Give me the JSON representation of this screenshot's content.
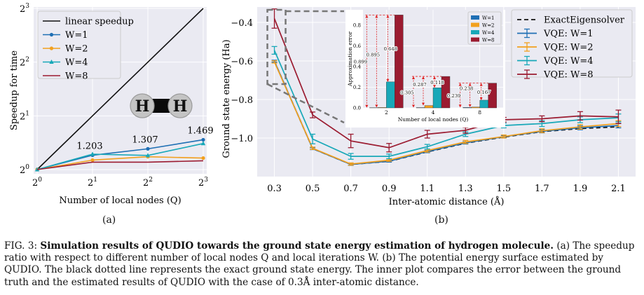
{
  "chart_data": [
    {
      "type": "line",
      "xlabel": "Number of local nodes (Q)",
      "ylabel": "Speedup for time",
      "x_scale": "log2",
      "y_scale": "log2",
      "xticks": [
        "2^0",
        "2^1",
        "2^2",
        "2^3"
      ],
      "yticks": [
        "2^0",
        "2^1",
        "2^2",
        "2^3"
      ],
      "grid": true,
      "legend_position": "top-left",
      "x": [
        1,
        2,
        4,
        8
      ],
      "series": [
        {
          "name": "linear speedup",
          "color": "#111111",
          "values": [
            1,
            2,
            4,
            8
          ]
        },
        {
          "name": "W=1",
          "color": "#1f6fb4",
          "marker": "circle",
          "values": [
            1,
            1.203,
            1.307,
            1.469
          ]
        },
        {
          "name": "W=2",
          "color": "#f2a01e",
          "marker": "circle",
          "values": [
            1,
            1.13,
            1.18,
            1.16
          ]
        },
        {
          "name": "W=4",
          "color": "#18a8b8",
          "marker": "triangle",
          "values": [
            1,
            1.22,
            1.2,
            1.4
          ]
        },
        {
          "name": "W=8",
          "color": "#9b1b30",
          "marker": "none",
          "values": [
            1,
            1.1,
            1.1,
            1.12
          ]
        }
      ],
      "annotations": [
        {
          "x": 2,
          "y": 1.203,
          "text": "1.203"
        },
        {
          "x": 4,
          "y": 1.307,
          "text": "1.307"
        },
        {
          "x": 8,
          "y": 1.469,
          "text": "1.469"
        }
      ],
      "molecule_labels": [
        "H",
        "H"
      ]
    },
    {
      "type": "line",
      "xlabel": "Inter-atomic distance (Å)",
      "ylabel": "Ground state energy (Ha)",
      "ylim": [
        -1.2,
        -0.32
      ],
      "xticks": [
        "0.3",
        "0.5",
        "0.7",
        "0.9",
        "1.1",
        "1.3",
        "1.5",
        "1.7",
        "1.9",
        "2.1"
      ],
      "yticks": [
        "-0.4",
        "-0.6",
        "-0.8",
        "-1.0"
      ],
      "grid": true,
      "legend_position": "top-right",
      "x": [
        0.3,
        0.5,
        0.7,
        0.9,
        1.1,
        1.3,
        1.5,
        1.7,
        1.9,
        2.1
      ],
      "series": [
        {
          "name": "ExactEigensolver",
          "color": "#111111",
          "style": "dashed",
          "values": [
            -0.601,
            -1.055,
            -1.137,
            -1.121,
            -1.072,
            -1.027,
            -0.995,
            -0.967,
            -0.951,
            -0.942
          ]
        },
        {
          "name": "VQE: W=1",
          "color": "#1f6fb4",
          "values": [
            -0.601,
            -1.055,
            -1.137,
            -1.12,
            -1.07,
            -1.025,
            -0.993,
            -0.965,
            -0.947,
            -0.935
          ],
          "errors": [
            0.005,
            0.005,
            0.005,
            0.005,
            0.006,
            0.006,
            0.006,
            0.008,
            0.01,
            0.012
          ]
        },
        {
          "name": "VQE: W=2",
          "color": "#f2a01e",
          "values": [
            -0.605,
            -1.053,
            -1.135,
            -1.115,
            -1.065,
            -1.02,
            -0.992,
            -0.962,
            -0.942,
            -0.925
          ],
          "errors": [
            0.006,
            0.006,
            0.006,
            0.006,
            0.008,
            0.008,
            0.008,
            0.01,
            0.012,
            0.015
          ]
        },
        {
          "name": "VQE: W=4",
          "color": "#18a8b8",
          "values": [
            -0.545,
            -1.005,
            -1.095,
            -1.095,
            -1.045,
            -0.98,
            -0.935,
            -0.925,
            -0.905,
            -0.895
          ],
          "errors": [
            0.02,
            0.025,
            0.015,
            0.012,
            0.012,
            0.012,
            0.012,
            0.015,
            0.015,
            0.02
          ]
        },
        {
          "name": "VQE: W=8",
          "color": "#9b1b30",
          "values": [
            -0.38,
            -0.88,
            -1.015,
            -1.05,
            -0.98,
            -0.96,
            -0.905,
            -0.9,
            -0.885,
            -0.89
          ],
          "errors": [
            0.05,
            0.015,
            0.035,
            0.022,
            0.02,
            0.015,
            0.012,
            0.015,
            0.022,
            0.035
          ]
        }
      ],
      "inset": {
        "type": "bar",
        "ylabel": "Approximation error",
        "xlabel": "Number of local nodes (Q)",
        "categories": [
          "2",
          "4",
          "8"
        ],
        "ylim": [
          0,
          0.95
        ],
        "yticks": [
          "0.0",
          "0.2",
          "0.4",
          "0.6",
          "0.8"
        ],
        "legend_position": "top-right",
        "series": [
          {
            "name": "W=1",
            "color": "#1f6fb4",
            "values": [
              0.002,
              0.003,
              0.004
            ]
          },
          {
            "name": "W=2",
            "color": "#f2a01e",
            "values": [
              0.004,
              0.023,
              0.008
            ]
          },
          {
            "name": "W=4",
            "color": "#18a8b8",
            "values": [
              0.252,
              0.195,
              0.075
            ]
          },
          {
            "name": "W=8",
            "color": "#9b1b30",
            "values": [
              0.9,
              0.305,
              0.24
            ]
          }
        ],
        "annotations": [
          {
            "category": "2",
            "text": "0.899"
          },
          {
            "category": "2",
            "text": "0.895"
          },
          {
            "category": "2",
            "text": "0.648"
          },
          {
            "category": "4",
            "text": "0.305"
          },
          {
            "category": "4",
            "text": "0.287"
          },
          {
            "category": "4",
            "text": "0.118"
          },
          {
            "category": "8",
            "text": "0.239"
          },
          {
            "category": "8",
            "text": "0.238"
          },
          {
            "category": "8",
            "text": "0.167"
          }
        ]
      }
    }
  ],
  "subfigure_labels": [
    "(a)",
    "(b)"
  ],
  "caption": {
    "prefix": "FIG. 3: ",
    "bold": "Simulation results of QUDIO towards the ground state energy estimation of hydrogen molecule.",
    "rest": " (a) The speedup ratio with respect to different number of local nodes Q and local iterations W. (b) The potential energy surface estimated by QUDIO. The black dotted line represents the exact ground state energy. The inner plot compares the error between the ground truth and the estimated results of QUDIO with the case of 0.3Å inter-atomic distance."
  }
}
